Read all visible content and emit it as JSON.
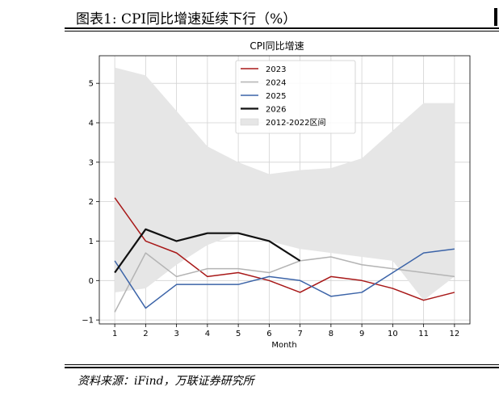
{
  "figure": {
    "title": "图表1:  CPI同比增速延续下行（%）",
    "source": "资料来源：iFind，万联证券研究所"
  },
  "chart_data": {
    "type": "line",
    "title": "CPI同比增速",
    "xlabel": "Month",
    "ylabel": "",
    "x": [
      1,
      2,
      3,
      4,
      5,
      6,
      7,
      8,
      9,
      10,
      11,
      12
    ],
    "xlim": [
      0.5,
      12.5
    ],
    "ylim": [
      -1.1,
      5.7
    ],
    "yticks": [
      -1,
      0,
      1,
      2,
      3,
      4,
      5
    ],
    "grid": true,
    "legend_position": "top-center",
    "band": {
      "name": "2012-2022区间",
      "color": "#e6e6e6",
      "upper": [
        5.4,
        5.2,
        4.3,
        3.4,
        3.0,
        2.7,
        2.8,
        2.85,
        3.1,
        3.8,
        4.5,
        4.5
      ],
      "lower": [
        -0.3,
        -0.2,
        0.4,
        0.9,
        1.2,
        1.0,
        0.8,
        0.7,
        0.6,
        0.5,
        -0.5,
        0.1
      ]
    },
    "series": [
      {
        "name": "2023",
        "color": "#a81818",
        "width": 1.5,
        "values": [
          2.1,
          1.0,
          0.7,
          0.1,
          0.2,
          0.0,
          -0.3,
          0.1,
          0.0,
          -0.2,
          -0.5,
          -0.3
        ]
      },
      {
        "name": "2024",
        "color": "#b4b4b4",
        "width": 1.5,
        "values": [
          -0.8,
          0.7,
          0.1,
          0.3,
          0.3,
          0.2,
          0.5,
          0.6,
          0.4,
          0.3,
          0.2,
          0.1
        ]
      },
      {
        "name": "2025",
        "color": "#3c64a8",
        "width": 1.5,
        "values": [
          0.5,
          -0.7,
          -0.1,
          -0.1,
          -0.1,
          0.1,
          0.0,
          -0.4,
          -0.3,
          0.2,
          0.7,
          0.8
        ]
      },
      {
        "name": "2026",
        "color": "#111111",
        "width": 2.2,
        "values": [
          0.2,
          1.3,
          1.0,
          1.2,
          1.2,
          1.0,
          0.5,
          null,
          null,
          null,
          null,
          null
        ]
      }
    ]
  }
}
